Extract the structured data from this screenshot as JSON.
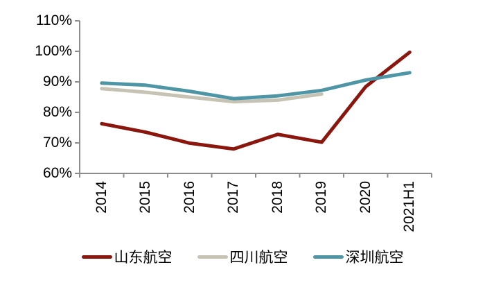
{
  "chart_data": {
    "type": "line",
    "title": "",
    "xlabel": "",
    "ylabel": "",
    "categories": [
      "2014",
      "2015",
      "2016",
      "2017",
      "2018",
      "2019",
      "2020",
      "2021H1"
    ],
    "series": [
      {
        "name": "山东航空",
        "color": "#8A160D",
        "values": [
          76.3,
          73.5,
          69.9,
          68.0,
          72.8,
          70.2,
          88.4,
          99.7
        ]
      },
      {
        "name": "四川航空",
        "color": "#C6C3B5",
        "values": [
          87.8,
          86.6,
          85.0,
          83.5,
          84.0,
          86.0,
          null,
          null
        ]
      },
      {
        "name": "深圳航空",
        "color": "#4E96A6",
        "values": [
          89.6,
          88.9,
          86.9,
          84.5,
          85.4,
          87.2,
          90.6,
          93.0
        ]
      }
    ],
    "ylim": [
      60,
      110
    ],
    "yticks": [
      110,
      100,
      90,
      80,
      70,
      60
    ],
    "ytick_suffix": "%",
    "grid": false,
    "legend_position": "bottom",
    "axis_color": "#8C8C8C",
    "line_width": 5
  }
}
